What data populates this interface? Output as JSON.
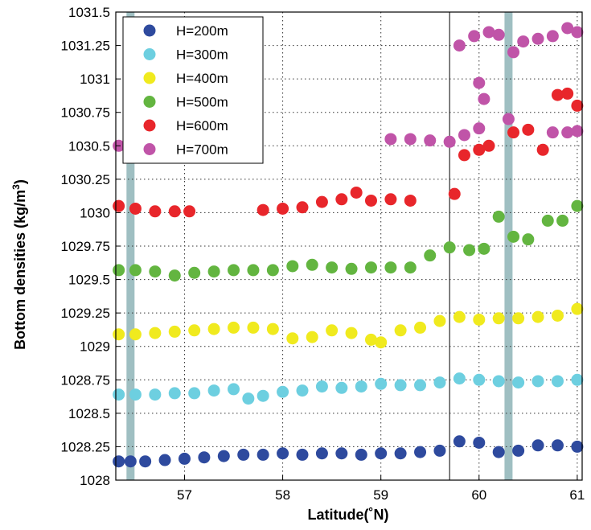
{
  "chart_data": {
    "type": "scatter",
    "xlabel": "Latitude(˚N)",
    "ylabel_main": "Bottom densities (kg/m",
    "ylabel_sup": "3",
    "ylabel_end": ")",
    "xlim": [
      56.3,
      61.05
    ],
    "ylim": [
      1028,
      1031.5
    ],
    "x_ticks": [
      57,
      58,
      59,
      60,
      61
    ],
    "x_tick_labels": [
      "57",
      "58",
      "59",
      "60",
      "61"
    ],
    "y_ticks": [
      1028,
      1028.25,
      1028.5,
      1028.75,
      1029,
      1029.25,
      1029.5,
      1029.75,
      1030,
      1030.25,
      1030.5,
      1030.75,
      1031,
      1031.25,
      1031.5
    ],
    "y_tick_labels": [
      "1028",
      "1028.25",
      "1028.5",
      "1028.75",
      "1029",
      "1029.25",
      "1029.5",
      "1029.75",
      "1030",
      "1030.25",
      "1030.5",
      "1030.75",
      "1031",
      "1031.25",
      "1031.5"
    ],
    "grid": true,
    "legend_position": "top-left",
    "vertical_bands": [
      56.45,
      60.3
    ],
    "vertical_line": 59.7,
    "series": [
      {
        "name": "H=200m",
        "color": "#2e4a9e",
        "points": [
          [
            56.33,
            1028.14
          ],
          [
            56.45,
            1028.14
          ],
          [
            56.6,
            1028.14
          ],
          [
            56.8,
            1028.15
          ],
          [
            57.0,
            1028.16
          ],
          [
            57.2,
            1028.17
          ],
          [
            57.4,
            1028.18
          ],
          [
            57.6,
            1028.19
          ],
          [
            57.8,
            1028.19
          ],
          [
            58.0,
            1028.2
          ],
          [
            58.2,
            1028.19
          ],
          [
            58.4,
            1028.2
          ],
          [
            58.6,
            1028.2
          ],
          [
            58.8,
            1028.19
          ],
          [
            59.0,
            1028.2
          ],
          [
            59.2,
            1028.2
          ],
          [
            59.4,
            1028.21
          ],
          [
            59.6,
            1028.22
          ],
          [
            59.8,
            1028.29
          ],
          [
            60.0,
            1028.28
          ],
          [
            60.2,
            1028.21
          ],
          [
            60.4,
            1028.22
          ],
          [
            60.6,
            1028.26
          ],
          [
            60.8,
            1028.26
          ],
          [
            61.0,
            1028.25
          ]
        ]
      },
      {
        "name": "H=300m",
        "color": "#6dcfe0",
        "points": [
          [
            56.33,
            1028.64
          ],
          [
            56.5,
            1028.64
          ],
          [
            56.7,
            1028.64
          ],
          [
            56.9,
            1028.65
          ],
          [
            57.1,
            1028.65
          ],
          [
            57.3,
            1028.67
          ],
          [
            57.5,
            1028.68
          ],
          [
            57.65,
            1028.61
          ],
          [
            57.8,
            1028.63
          ],
          [
            58.0,
            1028.66
          ],
          [
            58.2,
            1028.67
          ],
          [
            58.4,
            1028.7
          ],
          [
            58.6,
            1028.69
          ],
          [
            58.8,
            1028.7
          ],
          [
            59.0,
            1028.72
          ],
          [
            59.2,
            1028.71
          ],
          [
            59.4,
            1028.71
          ],
          [
            59.6,
            1028.73
          ],
          [
            59.8,
            1028.76
          ],
          [
            60.0,
            1028.75
          ],
          [
            60.2,
            1028.74
          ],
          [
            60.4,
            1028.73
          ],
          [
            60.6,
            1028.74
          ],
          [
            60.8,
            1028.74
          ],
          [
            61.0,
            1028.75
          ]
        ]
      },
      {
        "name": "H=400m",
        "color": "#f0ea1e",
        "points": [
          [
            56.33,
            1029.09
          ],
          [
            56.5,
            1029.09
          ],
          [
            56.7,
            1029.1
          ],
          [
            56.9,
            1029.11
          ],
          [
            57.1,
            1029.12
          ],
          [
            57.3,
            1029.13
          ],
          [
            57.5,
            1029.14
          ],
          [
            57.7,
            1029.14
          ],
          [
            57.9,
            1029.13
          ],
          [
            58.1,
            1029.06
          ],
          [
            58.3,
            1029.07
          ],
          [
            58.5,
            1029.12
          ],
          [
            58.7,
            1029.1
          ],
          [
            58.9,
            1029.05
          ],
          [
            59.0,
            1029.03
          ],
          [
            59.2,
            1029.12
          ],
          [
            59.4,
            1029.14
          ],
          [
            59.6,
            1029.19
          ],
          [
            59.8,
            1029.22
          ],
          [
            60.0,
            1029.2
          ],
          [
            60.2,
            1029.21
          ],
          [
            60.4,
            1029.21
          ],
          [
            60.6,
            1029.22
          ],
          [
            60.8,
            1029.23
          ],
          [
            61.0,
            1029.28
          ]
        ]
      },
      {
        "name": "H=500m",
        "color": "#63b540",
        "points": [
          [
            56.33,
            1029.57
          ],
          [
            56.5,
            1029.57
          ],
          [
            56.7,
            1029.56
          ],
          [
            56.9,
            1029.53
          ],
          [
            57.1,
            1029.55
          ],
          [
            57.3,
            1029.56
          ],
          [
            57.5,
            1029.57
          ],
          [
            57.7,
            1029.57
          ],
          [
            57.9,
            1029.57
          ],
          [
            58.1,
            1029.6
          ],
          [
            58.3,
            1029.61
          ],
          [
            58.5,
            1029.59
          ],
          [
            58.7,
            1029.58
          ],
          [
            58.9,
            1029.59
          ],
          [
            59.1,
            1029.59
          ],
          [
            59.3,
            1029.59
          ],
          [
            59.5,
            1029.68
          ],
          [
            59.7,
            1029.74
          ],
          [
            59.9,
            1029.72
          ],
          [
            60.05,
            1029.73
          ],
          [
            60.2,
            1029.97
          ],
          [
            60.35,
            1029.82
          ],
          [
            60.5,
            1029.8
          ],
          [
            60.7,
            1029.94
          ],
          [
            60.85,
            1029.94
          ],
          [
            61.0,
            1030.05
          ]
        ]
      },
      {
        "name": "H=600m",
        "color": "#e8262b",
        "points": [
          [
            56.33,
            1030.05
          ],
          [
            56.5,
            1030.03
          ],
          [
            56.7,
            1030.01
          ],
          [
            56.9,
            1030.01
          ],
          [
            57.05,
            1030.01
          ],
          [
            57.8,
            1030.02
          ],
          [
            58.0,
            1030.03
          ],
          [
            58.2,
            1030.04
          ],
          [
            58.4,
            1030.08
          ],
          [
            58.6,
            1030.1
          ],
          [
            58.75,
            1030.15
          ],
          [
            58.9,
            1030.09
          ],
          [
            59.1,
            1030.1
          ],
          [
            59.3,
            1030.09
          ],
          [
            59.75,
            1030.14
          ],
          [
            59.85,
            1030.43
          ],
          [
            60.0,
            1030.47
          ],
          [
            60.1,
            1030.5
          ],
          [
            60.35,
            1030.6
          ],
          [
            60.5,
            1030.62
          ],
          [
            60.65,
            1030.47
          ],
          [
            60.8,
            1030.88
          ],
          [
            60.9,
            1030.89
          ],
          [
            61.0,
            1030.8
          ]
        ]
      },
      {
        "name": "H=700m",
        "color": "#c054a8",
        "points": [
          [
            56.33,
            1030.5
          ],
          [
            59.1,
            1030.55
          ],
          [
            59.3,
            1030.55
          ],
          [
            59.5,
            1030.54
          ],
          [
            59.7,
            1030.53
          ],
          [
            59.85,
            1030.58
          ],
          [
            60.0,
            1030.63
          ],
          [
            60.0,
            1030.97
          ],
          [
            60.05,
            1030.85
          ],
          [
            59.8,
            1031.25
          ],
          [
            59.95,
            1031.32
          ],
          [
            60.1,
            1031.35
          ],
          [
            60.2,
            1031.33
          ],
          [
            60.3,
            1030.7
          ],
          [
            60.35,
            1031.2
          ],
          [
            60.45,
            1031.28
          ],
          [
            60.6,
            1031.3
          ],
          [
            60.75,
            1031.32
          ],
          [
            60.9,
            1031.38
          ],
          [
            61.0,
            1031.35
          ],
          [
            60.75,
            1030.6
          ],
          [
            60.9,
            1030.6
          ],
          [
            61.0,
            1030.61
          ]
        ]
      }
    ]
  }
}
